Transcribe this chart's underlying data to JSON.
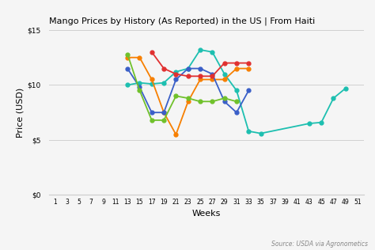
{
  "title": "Mango Prices by History (As Reported) in the US | From Haiti",
  "xlabel": "Weeks",
  "ylabel": "Price (USD)",
  "source": "Source: USDA via Agronometics",
  "ylim": [
    0,
    15
  ],
  "yticks": [
    0,
    5,
    10,
    15
  ],
  "ytick_labels": [
    "$0",
    "$5",
    "$10",
    "$15"
  ],
  "xticks": [
    1,
    3,
    5,
    7,
    9,
    11,
    13,
    15,
    17,
    19,
    21,
    23,
    25,
    27,
    29,
    31,
    33,
    35,
    37,
    39,
    41,
    43,
    45,
    47,
    49,
    51
  ],
  "xlim": [
    0,
    52
  ],
  "bg_color": "#f5f5f5",
  "series": {
    "2018": {
      "color": "#1dbfb0",
      "weeks": [
        13,
        15,
        17,
        19,
        21,
        23,
        25,
        27,
        29,
        31,
        33,
        35,
        43,
        45,
        47,
        49
      ],
      "prices": [
        10.0,
        10.2,
        10.1,
        10.2,
        11.2,
        11.5,
        13.2,
        13.0,
        11.0,
        9.5,
        5.8,
        5.6,
        6.5,
        6.6,
        8.8,
        9.7
      ]
    },
    "2019": {
      "color": "#f77f00",
      "weeks": [
        13,
        15,
        17,
        19,
        21,
        23,
        25,
        27,
        29,
        31,
        33
      ],
      "prices": [
        12.5,
        12.5,
        10.5,
        7.5,
        5.5,
        8.5,
        10.5,
        10.5,
        10.5,
        11.5,
        11.5
      ]
    },
    "2020": {
      "color": "#3a5fc8",
      "weeks": [
        13,
        15,
        17,
        19,
        21,
        23,
        25,
        27,
        29,
        31,
        33
      ],
      "prices": [
        11.5,
        9.8,
        7.5,
        7.5,
        10.5,
        11.5,
        11.5,
        11.0,
        8.5,
        7.5,
        9.5
      ]
    },
    "2021": {
      "color": "#70c12b",
      "weeks": [
        13,
        15,
        17,
        19,
        21,
        23,
        25,
        27,
        29,
        31
      ],
      "prices": [
        12.8,
        9.5,
        6.8,
        6.8,
        9.0,
        8.8,
        8.5,
        8.5,
        8.8,
        8.5
      ]
    },
    "2022": {
      "color": "#e03030",
      "weeks": [
        17,
        19,
        21,
        23,
        25,
        27,
        29,
        31,
        33
      ],
      "prices": [
        13.0,
        11.5,
        11.0,
        10.8,
        10.8,
        10.8,
        12.0,
        12.0,
        12.0
      ]
    }
  }
}
